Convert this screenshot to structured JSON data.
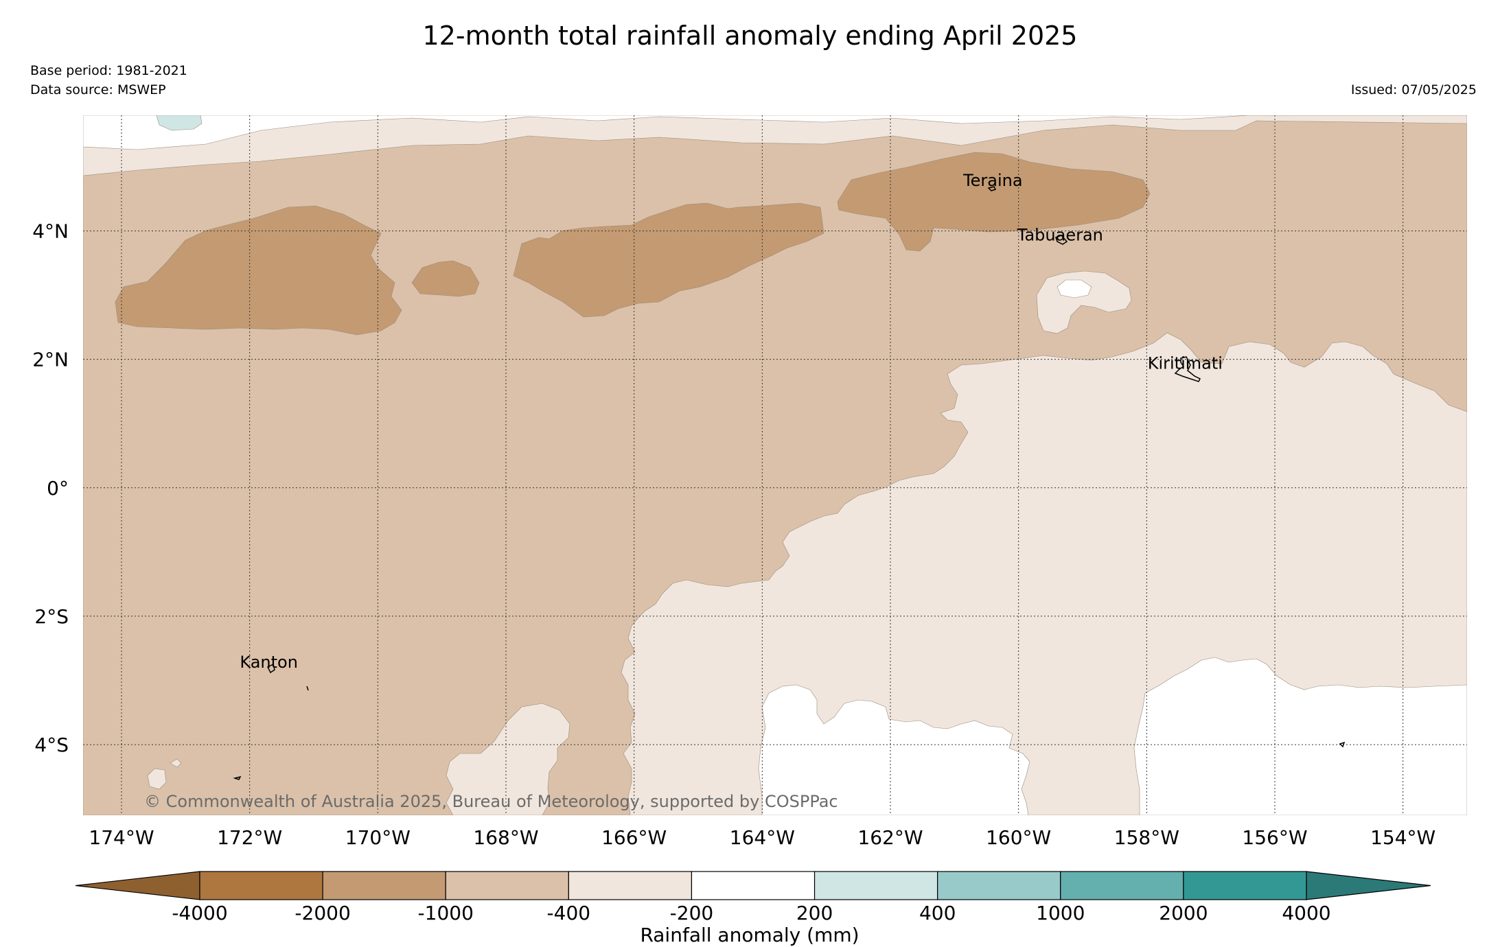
{
  "title": "12-month total rainfall anomaly ending April 2025",
  "base_period": "Base period: 1981-2021",
  "data_source": "Data source: MSWEP",
  "issued": "Issued: 07/05/2025",
  "copyright": "© Commonwealth of Australia 2025, Bureau of Meteorology, supported by COSPPac",
  "map": {
    "lon_range": [
      -174.6,
      -153.0
    ],
    "lat_range": [
      -5.1,
      5.8
    ],
    "lon_ticks": [
      {
        "value": -174,
        "label": "174°W"
      },
      {
        "value": -172,
        "label": "172°W"
      },
      {
        "value": -170,
        "label": "170°W"
      },
      {
        "value": -168,
        "label": "168°W"
      },
      {
        "value": -166,
        "label": "166°W"
      },
      {
        "value": -164,
        "label": "164°W"
      },
      {
        "value": -162,
        "label": "162°W"
      },
      {
        "value": -160,
        "label": "160°W"
      },
      {
        "value": -158,
        "label": "158°W"
      },
      {
        "value": -156,
        "label": "156°W"
      },
      {
        "value": -154,
        "label": "154°W"
      }
    ],
    "lat_ticks": [
      {
        "value": 4,
        "label": "4°N"
      },
      {
        "value": 2,
        "label": "2°N"
      },
      {
        "value": 0,
        "label": "0°"
      },
      {
        "value": -2,
        "label": "2°S"
      },
      {
        "value": -4,
        "label": "4°S"
      }
    ],
    "gridlines": true,
    "places": [
      {
        "name": "Teraina",
        "lon": -160.4,
        "lat": 4.7
      },
      {
        "name": "Tabuaeran",
        "lon": -159.35,
        "lat": 3.85
      },
      {
        "name": "Kiritimati",
        "lon": -157.4,
        "lat": 1.85
      },
      {
        "name": "Kanton",
        "lon": -171.7,
        "lat": -2.8
      }
    ]
  },
  "colorbar": {
    "label": "Rainfall anomaly (mm)",
    "tick_labels": [
      "-4000",
      "-2000",
      "-1000",
      "-400",
      "-200",
      "200",
      "400",
      "1000",
      "2000",
      "4000"
    ],
    "extend_low_color": "#8e6030",
    "extend_high_color": "#2b7a78",
    "band_colors": [
      "#ad773f",
      "#c39a72",
      "#dbc1a9",
      "#f0e6dd",
      "#ffffff",
      "#cfe6e5",
      "#98cac9",
      "#63b0ae",
      "#339894"
    ]
  },
  "anomaly_class_colors": {
    "class_-2000_-1000": "#c39a72",
    "class_-1000_-400": "#dbc1a9",
    "class_-400_-200": "#f0e6dd",
    "class_-200_200": "#ffffff",
    "class_200_400": "#cfe6e5"
  }
}
